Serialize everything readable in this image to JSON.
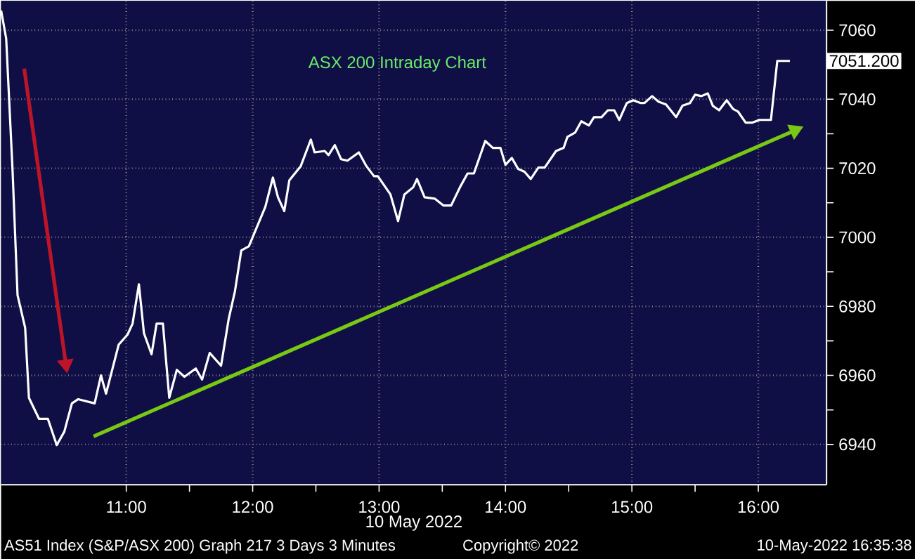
{
  "chart_data": {
    "type": "line",
    "title": "ASX 200 Intraday Chart",
    "xlabel": "10 May 2022",
    "x": [
      10.01,
      10.05,
      10.1,
      10.14,
      10.2,
      10.23,
      10.31,
      10.38,
      10.45,
      10.51,
      10.57,
      10.62,
      10.75,
      10.8,
      10.84,
      10.94,
      11.01,
      11.05,
      11.1,
      11.14,
      11.2,
      11.24,
      11.29,
      11.34,
      11.4,
      11.46,
      11.55,
      11.6,
      11.66,
      11.75,
      11.81,
      11.86,
      11.91,
      11.97,
      12.1,
      12.16,
      12.2,
      12.25,
      12.29,
      12.38,
      12.46,
      12.49,
      12.57,
      12.6,
      12.65,
      12.7,
      12.75,
      12.84,
      12.9,
      12.96,
      12.99,
      13.09,
      13.15,
      13.2,
      13.27,
      13.3,
      13.36,
      13.44,
      13.51,
      13.57,
      13.64,
      13.7,
      13.75,
      13.84,
      13.9,
      13.96,
      14.0,
      14.05,
      14.1,
      14.15,
      14.2,
      14.26,
      14.31,
      14.4,
      14.46,
      14.49,
      14.55,
      14.6,
      14.66,
      14.7,
      14.76,
      14.81,
      14.86,
      14.9,
      14.96,
      15.01,
      15.07,
      15.1,
      15.16,
      15.21,
      15.27,
      15.35,
      15.4,
      15.46,
      15.5,
      15.55,
      15.6,
      15.64,
      15.69,
      15.75,
      15.8,
      15.84,
      15.9,
      15.95,
      16.01,
      16.1,
      16.15,
      16.25
    ],
    "series": [
      {
        "color": "#ffffff",
        "values": [
          7065.7,
          7057.6,
          7019.8,
          6983.2,
          6973.8,
          6953.5,
          6947.4,
          6947.4,
          6939.8,
          6943.7,
          6951.9,
          6953.1,
          6951.9,
          6960.0,
          6954.7,
          6968.9,
          6971.8,
          6975.0,
          6986.4,
          6972.2,
          6966.1,
          6975.0,
          6975.0,
          6953.5,
          6961.6,
          6959.6,
          6962.0,
          6958.8,
          6966.5,
          6962.8,
          6976.3,
          6984.4,
          6996.2,
          6997.4,
          7008.8,
          7017.3,
          7011.6,
          7007.6,
          7016.5,
          7020.6,
          7028.3,
          7024.6,
          7025.0,
          7023.8,
          7026.7,
          7022.6,
          7022.2,
          7024.6,
          7020.6,
          7017.7,
          7017.7,
          7012.4,
          7004.7,
          7012.4,
          7014.5,
          7016.9,
          7011.6,
          7011.2,
          7009.2,
          7009.2,
          7014.5,
          7018.5,
          7018.5,
          7027.9,
          7025.9,
          7025.9,
          7021.0,
          7023.0,
          7019.8,
          7019.0,
          7016.9,
          7020.2,
          7020.2,
          7025.0,
          7025.9,
          7029.1,
          7030.3,
          7033.6,
          7032.4,
          7034.8,
          7034.8,
          7036.8,
          7036.8,
          7034.0,
          7038.9,
          7039.7,
          7038.9,
          7038.9,
          7040.9,
          7039.3,
          7038.5,
          7034.8,
          7038.1,
          7038.9,
          7041.3,
          7040.9,
          7041.7,
          7038.1,
          7036.8,
          7039.7,
          7037.2,
          7036.4,
          7033.2,
          7033.2,
          7034.0,
          7034.0,
          7051.1,
          7051.1
        ]
      }
    ],
    "xlim": [
      10.01,
      16.54
    ],
    "ylim": [
      6928.3,
      7068.5
    ],
    "xticks": [
      {
        "value": 11,
        "label": "11:00"
      },
      {
        "value": 12,
        "label": "12:00"
      },
      {
        "value": 13,
        "label": "13:00"
      },
      {
        "value": 14,
        "label": "14:00"
      },
      {
        "value": 15,
        "label": "15:00"
      },
      {
        "value": 16,
        "label": "16:00"
      }
    ],
    "yticks": [
      6940,
      6960,
      6980,
      7000,
      7020,
      7040,
      7060
    ],
    "grid": true,
    "annotations": [
      "7051.200",
      "AS51 Index (S&P/ASX 200) Graph 217 3 Days 3 Minutes",
      "Copyright© 2022",
      "10-May-2022 16:35:38"
    ]
  }
}
